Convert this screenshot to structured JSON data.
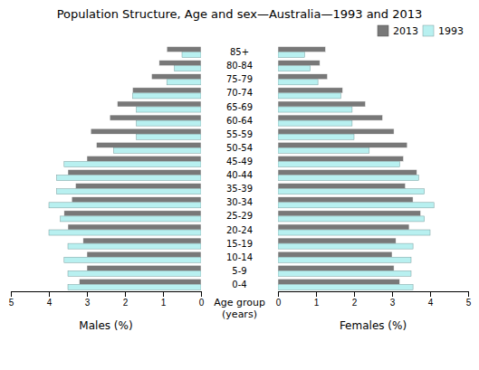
{
  "chart_data": [
    {
      "type": "bar",
      "orientation": "horizontal",
      "title": "Population Structure, Age and sex—Australia—1993 and 2013",
      "xlabel": "Males (%)",
      "ylabel": "Age group\n(years)",
      "categories": [
        "0-4",
        "5-9",
        "10-14",
        "15-19",
        "20-24",
        "25-29",
        "30-34",
        "35-39",
        "40-44",
        "45-49",
        "50-54",
        "55-59",
        "60-64",
        "65-69",
        "70-74",
        "75-79",
        "80-84",
        "85+"
      ],
      "series": [
        {
          "name": "2013",
          "color": "#787878",
          "values": [
            3.2,
            3.0,
            3.0,
            3.1,
            3.5,
            3.6,
            3.4,
            3.3,
            3.5,
            3.0,
            2.75,
            2.9,
            2.4,
            2.2,
            1.8,
            1.3,
            1.1,
            0.9
          ]
        },
        {
          "name": "1993",
          "color": "#b8f0f0",
          "values": [
            3.5,
            3.5,
            3.6,
            3.5,
            4.0,
            3.7,
            4.0,
            3.8,
            3.8,
            3.6,
            2.3,
            1.7,
            1.7,
            1.7,
            1.8,
            0.9,
            0.7,
            0.5
          ]
        }
      ],
      "xlim": [
        5,
        0
      ],
      "xticks": [
        0,
        1,
        2,
        3,
        4,
        5
      ],
      "grid": false
    },
    {
      "type": "bar",
      "orientation": "horizontal",
      "xlabel": "Females (%)",
      "categories": [
        "0-4",
        "5-9",
        "10-14",
        "15-19",
        "20-24",
        "25-29",
        "30-34",
        "35-39",
        "40-44",
        "45-49",
        "50-54",
        "55-59",
        "60-64",
        "65-69",
        "70-74",
        "75-79",
        "80-84",
        "85+"
      ],
      "series": [
        {
          "name": "2013",
          "color": "#787878",
          "values": [
            3.2,
            3.05,
            3.0,
            3.1,
            3.45,
            3.75,
            3.55,
            3.35,
            3.65,
            3.3,
            3.4,
            3.05,
            2.75,
            2.3,
            1.7,
            1.3,
            1.1,
            1.25
          ]
        },
        {
          "name": "1993",
          "color": "#b8f0f0",
          "values": [
            3.55,
            3.5,
            3.5,
            3.55,
            4.0,
            3.85,
            4.1,
            3.85,
            3.7,
            3.2,
            2.4,
            2.0,
            1.95,
            1.95,
            1.65,
            1.05,
            0.85,
            0.7
          ]
        }
      ],
      "xlim": [
        0,
        5
      ],
      "xticks": [
        0,
        1,
        2,
        3,
        4,
        5
      ],
      "grid": false,
      "legend": "upper right"
    }
  ]
}
